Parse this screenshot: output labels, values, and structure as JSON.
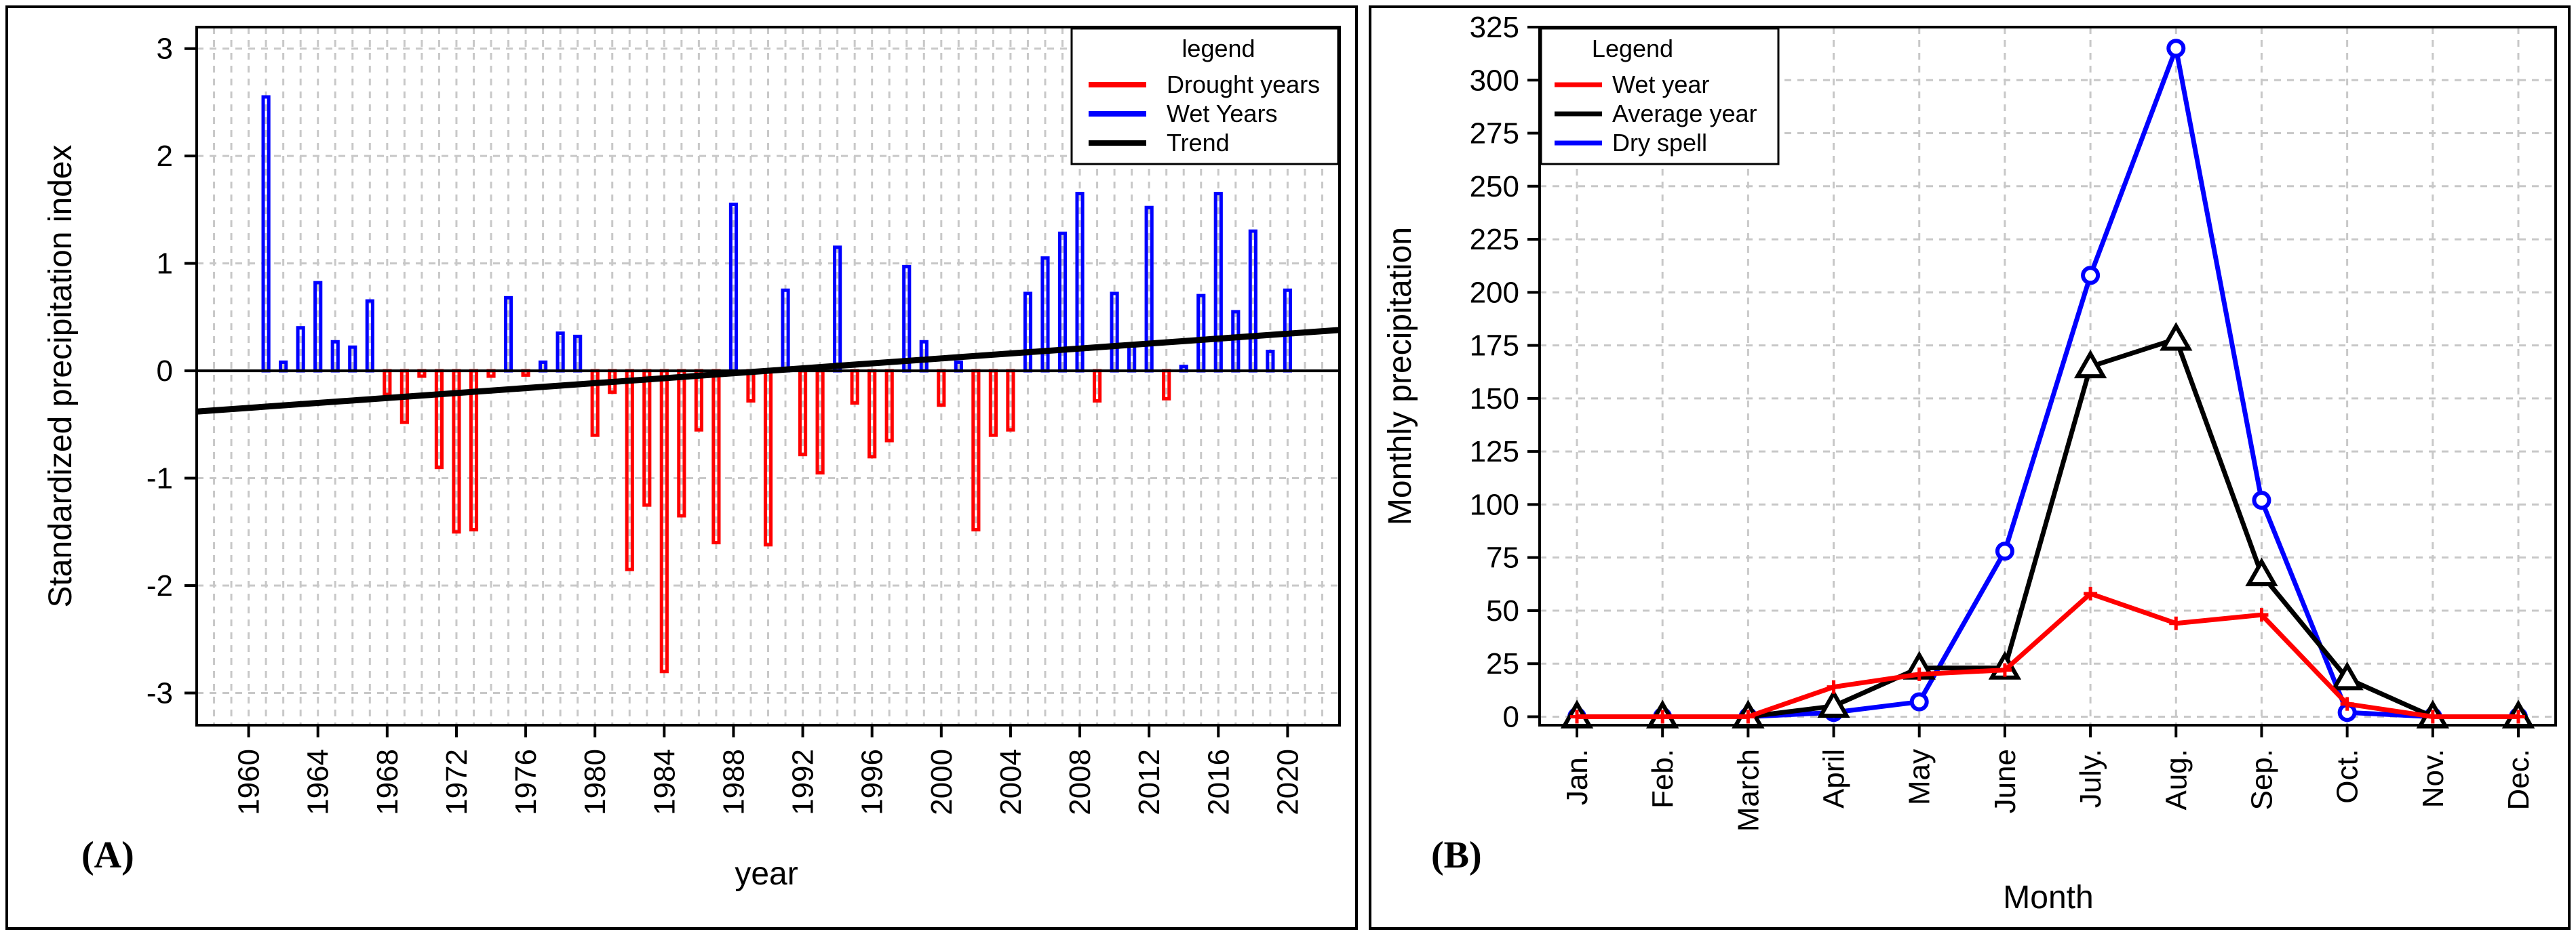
{
  "chart_data": [
    {
      "panel_label": "(A)",
      "type": "bar",
      "xlabel": "year",
      "ylabel": "Standardized precipitation index",
      "ylim": [
        -3.3,
        3.2
      ],
      "xlim": [
        1957,
        2023
      ],
      "x_ticks": [
        "1960",
        "1964",
        "1968",
        "1972",
        "1976",
        "1980",
        "1984",
        "1988",
        "1992",
        "1996",
        "2000",
        "2004",
        "2008",
        "2012",
        "2016",
        "2020"
      ],
      "y_ticks": [
        "3",
        "2",
        "1",
        "0",
        "-1",
        "-2",
        "-3"
      ],
      "legend": {
        "title": "legend",
        "entries": [
          {
            "label": "Drought years",
            "color": "#ff0000"
          },
          {
            "label": "Wet Years",
            "color": "#0000ff"
          },
          {
            "label": "Trend",
            "color": "#000000"
          }
        ]
      },
      "x": [
        1961,
        1962,
        1963,
        1964,
        1965,
        1966,
        1967,
        1968,
        1969,
        1970,
        1971,
        1972,
        1973,
        1974,
        1975,
        1976,
        1977,
        1978,
        1979,
        1980,
        1981,
        1982,
        1983,
        1984,
        1985,
        1986,
        1987,
        1988,
        1989,
        1990,
        1991,
        1992,
        1993,
        1994,
        1995,
        1996,
        1997,
        1998,
        1999,
        2000,
        2001,
        2002,
        2003,
        2004,
        2005,
        2006,
        2007,
        2008,
        2009,
        2010,
        2011,
        2012,
        2013,
        2014,
        2015,
        2016,
        2017,
        2018,
        2019,
        2020
      ],
      "values": [
        2.55,
        0.08,
        0.4,
        0.82,
        0.27,
        0.22,
        0.65,
        -0.22,
        -0.48,
        -0.05,
        -0.9,
        -1.5,
        -1.48,
        -0.05,
        0.68,
        -0.04,
        0.08,
        0.35,
        0.32,
        -0.6,
        -0.2,
        -1.85,
        -1.25,
        -2.8,
        -1.35,
        -0.55,
        -1.6,
        1.55,
        -0.28,
        -1.62,
        0.75,
        -0.78,
        -0.95,
        1.15,
        -0.3,
        -0.8,
        -0.65,
        0.97,
        0.27,
        -0.32,
        0.08,
        -1.48,
        -0.6,
        -0.55,
        0.72,
        1.05,
        1.28,
        1.65,
        -0.28,
        0.72,
        0.23,
        1.52,
        -0.26,
        0.04,
        0.7,
        1.65,
        0.55,
        1.3,
        0.18,
        0.75
      ],
      "trend": {
        "x": [
          1957,
          2023
        ],
        "y": [
          -0.38,
          0.38
        ]
      }
    },
    {
      "panel_label": "(B)",
      "type": "line",
      "xlabel": "Month",
      "ylabel": "Monthly precipitation",
      "ylim": [
        -4,
        325
      ],
      "categories": [
        "Jan.",
        "Feb.",
        "March",
        "April",
        "May",
        "June",
        "July.",
        "Aug.",
        "Sep.",
        "Oct.",
        "Nov.",
        "Dec."
      ],
      "y_ticks": [
        "0",
        "25",
        "50",
        "75",
        "100",
        "125",
        "150",
        "175",
        "200",
        "225",
        "250",
        "275",
        "300",
        "325"
      ],
      "legend": {
        "title": "Legend",
        "entries": [
          {
            "label": "Wet year",
            "color": "#ff0000"
          },
          {
            "label": "Average year",
            "color": "#000000"
          },
          {
            "label": "Dry spell",
            "color": "#0000ff"
          }
        ]
      },
      "series": [
        {
          "name": "Dry spell",
          "color": "#0000ff",
          "marker": "circle",
          "values": [
            0,
            0,
            0,
            2,
            7,
            78,
            208,
            315,
            102,
            2,
            0,
            0
          ]
        },
        {
          "name": "Average year",
          "color": "#000000",
          "marker": "triangle",
          "values": [
            0,
            0,
            0,
            5,
            23,
            23,
            165,
            178,
            67,
            18,
            0,
            0
          ]
        },
        {
          "name": "Wet year",
          "color": "#ff0000",
          "marker": "plus",
          "values": [
            0,
            0,
            0,
            14,
            20,
            22,
            58,
            44,
            48,
            6,
            0,
            0
          ]
        }
      ]
    }
  ]
}
